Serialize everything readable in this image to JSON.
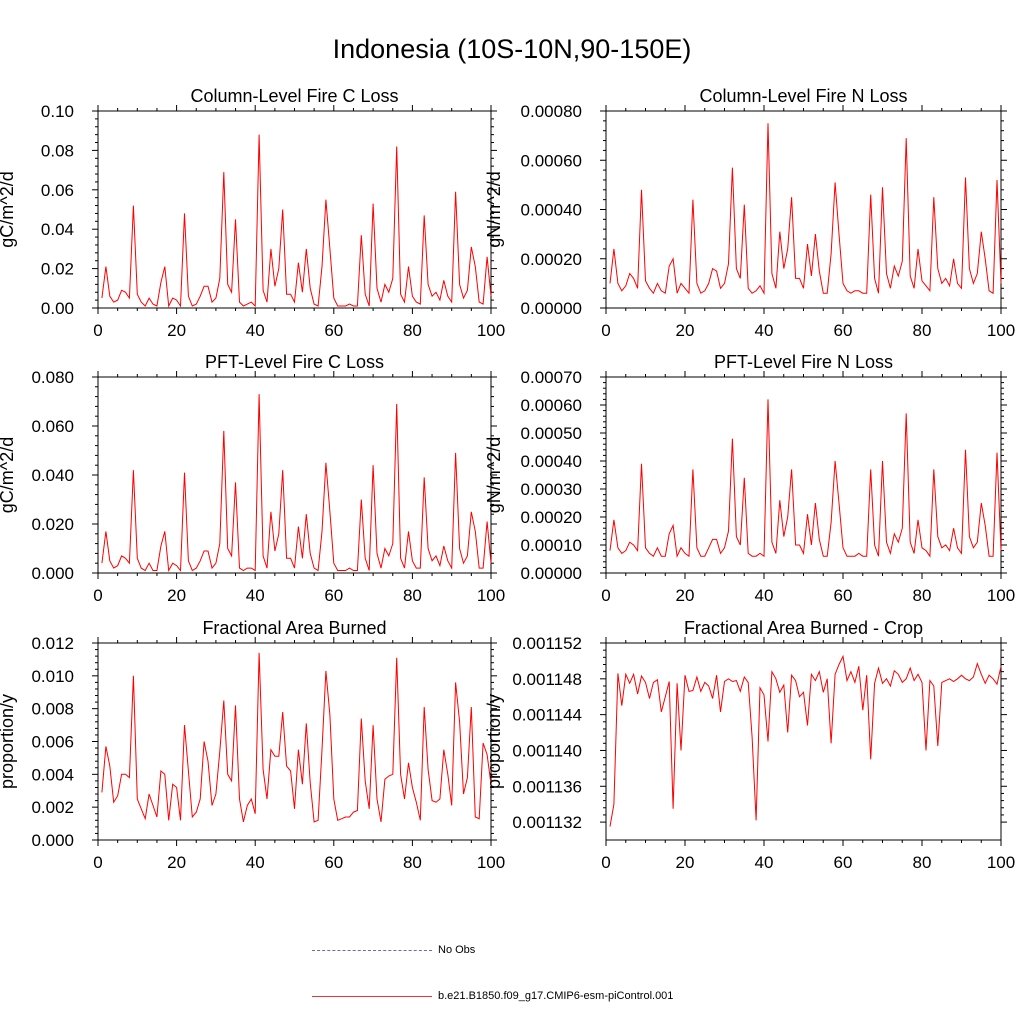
{
  "figure": {
    "title": "Indonesia (10S-10N,90-150E)"
  },
  "legend": [
    {
      "label": "No Obs",
      "style": "dashed",
      "color": "#6b6bb3"
    },
    {
      "label": "b.e21.B1850.f09_g17.CMIP6-esm-piControl.001",
      "style": "solid",
      "color": "#e23a3a"
    }
  ],
  "series_color": "#ff0000",
  "chart_data": [
    {
      "type": "line",
      "title": "Column-Level Fire C Loss",
      "ylabel": "gC/m^2/d",
      "xlim": [
        0,
        100
      ],
      "ylim": [
        0,
        0.1
      ],
      "xticks": [
        "0",
        "20",
        "40",
        "60",
        "80",
        "100"
      ],
      "xtick_values": [
        0,
        20,
        40,
        60,
        80,
        100
      ],
      "yticks": [
        "0.00",
        "0.02",
        "0.04",
        "0.06",
        "0.08",
        "0.10"
      ],
      "ytick_values": [
        0,
        0.02,
        0.04,
        0.06,
        0.08,
        0.1
      ],
      "x_start": 1,
      "values": [
        0.005,
        0.021,
        0.006,
        0.003,
        0.004,
        0.009,
        0.008,
        0.005,
        0.052,
        0.007,
        0.003,
        0.001,
        0.005,
        0.002,
        0.001,
        0.013,
        0.021,
        0.001,
        0.005,
        0.004,
        0.001,
        0.048,
        0.006,
        0.001,
        0.002,
        0.006,
        0.011,
        0.011,
        0.003,
        0.005,
        0.015,
        0.069,
        0.012,
        0.008,
        0.045,
        0.003,
        0.001,
        0.002,
        0.003,
        0.001,
        0.088,
        0.009,
        0.003,
        0.03,
        0.011,
        0.02,
        0.05,
        0.007,
        0.007,
        0.003,
        0.023,
        0.008,
        0.03,
        0.01,
        0.002,
        0.001,
        0.021,
        0.055,
        0.03,
        0.005,
        0.001,
        0.001,
        0.001,
        0.002,
        0.001,
        0.001,
        0.037,
        0.007,
        0.001,
        0.053,
        0.01,
        0.003,
        0.012,
        0.008,
        0.015,
        0.082,
        0.007,
        0.003,
        0.021,
        0.006,
        0.003,
        0.002,
        0.047,
        0.012,
        0.006,
        0.008,
        0.004,
        0.014,
        0.006,
        0.003,
        0.059,
        0.012,
        0.005,
        0.009,
        0.031,
        0.021,
        0.003,
        0.002,
        0.026,
        0.006
      ]
    },
    {
      "type": "line",
      "title": "Column-Level Fire N Loss",
      "ylabel": "gN/m^2/d",
      "xlim": [
        0,
        100
      ],
      "ylim": [
        0,
        0.0008
      ],
      "xticks": [
        "0",
        "20",
        "40",
        "60",
        "80",
        "100"
      ],
      "xtick_values": [
        0,
        20,
        40,
        60,
        80,
        100
      ],
      "yticks": [
        "0.00000",
        "0.00020",
        "0.00040",
        "0.00060",
        "0.00080"
      ],
      "ytick_values": [
        0,
        0.0002,
        0.0004,
        0.0006,
        0.0008
      ],
      "x_start": 1,
      "values": [
        0.0001,
        0.00024,
        0.0001,
        7e-05,
        9e-05,
        0.00014,
        0.00012,
        8e-05,
        0.00048,
        0.00011,
        8e-05,
        6e-05,
        0.0001,
        7e-05,
        6e-05,
        0.00017,
        0.0002,
        6e-05,
        0.0001,
        8e-05,
        6e-05,
        0.00044,
        0.0001,
        6e-05,
        7e-05,
        0.0001,
        0.00016,
        0.00015,
        8e-05,
        0.0001,
        0.00018,
        0.00057,
        0.00016,
        0.00012,
        0.00042,
        8e-05,
        6e-05,
        7e-05,
        9e-05,
        6e-05,
        0.00075,
        0.00014,
        8e-05,
        0.00031,
        0.00016,
        0.00024,
        0.00045,
        0.00012,
        0.00012,
        8e-05,
        0.00026,
        0.00013,
        0.0003,
        0.00015,
        6e-05,
        6e-05,
        0.00022,
        0.00051,
        0.0003,
        0.0001,
        7e-05,
        6e-05,
        7e-05,
        7e-05,
        6e-05,
        6e-05,
        0.00046,
        0.00012,
        6e-05,
        0.00049,
        0.00014,
        8e-05,
        0.00017,
        0.00013,
        0.00019,
        0.00069,
        0.00013,
        8e-05,
        0.00024,
        0.00011,
        9e-05,
        7e-05,
        0.00045,
        0.00016,
        0.0001,
        0.00012,
        9e-05,
        0.0002,
        0.0001,
        8e-05,
        0.00053,
        0.00016,
        0.0001,
        0.00014,
        0.00031,
        0.0002,
        7e-05,
        6e-05,
        0.00052,
        0.0001
      ]
    },
    {
      "type": "line",
      "title": "PFT-Level Fire C Loss",
      "ylabel": "gC/m^2/d",
      "xlim": [
        0,
        100
      ],
      "ylim": [
        0,
        0.08
      ],
      "xticks": [
        "0",
        "20",
        "40",
        "60",
        "80",
        "100"
      ],
      "xtick_values": [
        0,
        20,
        40,
        60,
        80,
        100
      ],
      "yticks": [
        "0.000",
        "0.020",
        "0.040",
        "0.060",
        "0.080"
      ],
      "ytick_values": [
        0,
        0.02,
        0.04,
        0.06,
        0.08
      ],
      "x_start": 1,
      "values": [
        0.004,
        0.017,
        0.005,
        0.002,
        0.003,
        0.007,
        0.006,
        0.004,
        0.042,
        0.006,
        0.002,
        0.001,
        0.004,
        0.001,
        0.001,
        0.011,
        0.017,
        0.001,
        0.004,
        0.003,
        0.001,
        0.041,
        0.005,
        0.001,
        0.002,
        0.005,
        0.009,
        0.009,
        0.002,
        0.004,
        0.012,
        0.058,
        0.01,
        0.007,
        0.037,
        0.002,
        0.001,
        0.002,
        0.002,
        0.001,
        0.073,
        0.007,
        0.002,
        0.025,
        0.009,
        0.016,
        0.042,
        0.006,
        0.006,
        0.002,
        0.019,
        0.006,
        0.024,
        0.008,
        0.002,
        0.001,
        0.017,
        0.045,
        0.025,
        0.004,
        0.001,
        0.001,
        0.001,
        0.002,
        0.001,
        0.001,
        0.03,
        0.006,
        0.001,
        0.044,
        0.008,
        0.002,
        0.01,
        0.007,
        0.012,
        0.069,
        0.006,
        0.002,
        0.017,
        0.005,
        0.002,
        0.002,
        0.039,
        0.01,
        0.005,
        0.007,
        0.003,
        0.011,
        0.005,
        0.002,
        0.049,
        0.01,
        0.004,
        0.007,
        0.025,
        0.017,
        0.002,
        0.002,
        0.021,
        0.004
      ]
    },
    {
      "type": "line",
      "title": "PFT-Level Fire N Loss",
      "ylabel": "gN/m^2/d",
      "xlim": [
        0,
        100
      ],
      "ylim": [
        0,
        0.0007
      ],
      "xticks": [
        "0",
        "20",
        "40",
        "60",
        "80",
        "100"
      ],
      "xtick_values": [
        0,
        20,
        40,
        60,
        80,
        100
      ],
      "yticks": [
        "0.00000",
        "0.00010",
        "0.00020",
        "0.00030",
        "0.00040",
        "0.00050",
        "0.00060",
        "0.00070"
      ],
      "ytick_values": [
        0,
        0.0001,
        0.0002,
        0.0003,
        0.0004,
        0.0005,
        0.0006,
        0.0007
      ],
      "x_start": 1,
      "values": [
        8e-05,
        0.00019,
        9e-05,
        7e-05,
        8e-05,
        0.00011,
        0.0001,
        8e-05,
        0.00039,
        9e-05,
        7e-05,
        6e-05,
        9e-05,
        6e-05,
        6e-05,
        0.00014,
        0.00017,
        6e-05,
        9e-05,
        7e-05,
        6e-05,
        0.00037,
        9e-05,
        6e-05,
        6e-05,
        9e-05,
        0.00012,
        0.00012,
        7e-05,
        9e-05,
        0.00015,
        0.00048,
        0.00013,
        0.0001,
        0.00034,
        7e-05,
        6e-05,
        6e-05,
        7e-05,
        6e-05,
        0.00062,
        0.00011,
        7e-05,
        0.00026,
        0.00013,
        0.0002,
        0.00037,
        0.0001,
        0.0001,
        7e-05,
        0.00021,
        0.0001,
        0.00025,
        0.00012,
        6e-05,
        6e-05,
        0.00018,
        0.0004,
        0.00025,
        9e-05,
        6e-05,
        6e-05,
        6e-05,
        7e-05,
        6e-05,
        6e-05,
        0.00037,
        0.0001,
        6e-05,
        0.0004,
        0.00011,
        7e-05,
        0.00014,
        0.00011,
        0.00016,
        0.00057,
        0.00011,
        7e-05,
        0.00019,
        9e-05,
        8e-05,
        6e-05,
        0.00037,
        0.00013,
        9e-05,
        0.0001,
        8e-05,
        0.00016,
        9e-05,
        7e-05,
        0.00044,
        0.00013,
        9e-05,
        0.00011,
        0.00025,
        0.00017,
        6e-05,
        6e-05,
        0.00043,
        8e-05
      ]
    },
    {
      "type": "line",
      "title": "Fractional Area Burned",
      "ylabel": "proportion/y",
      "xlim": [
        0,
        100
      ],
      "ylim": [
        0,
        0.012
      ],
      "xticks": [
        "0",
        "20",
        "40",
        "60",
        "80",
        "100"
      ],
      "xtick_values": [
        0,
        20,
        40,
        60,
        80,
        100
      ],
      "yticks": [
        "0.000",
        "0.002",
        "0.004",
        "0.006",
        "0.008",
        "0.010",
        "0.012"
      ],
      "ytick_values": [
        0,
        0.002,
        0.004,
        0.006,
        0.008,
        0.01,
        0.012
      ],
      "x_start": 1,
      "values": [
        0.0029,
        0.0057,
        0.0045,
        0.0023,
        0.0027,
        0.004,
        0.004,
        0.0038,
        0.01,
        0.0025,
        0.0019,
        0.0013,
        0.0028,
        0.0021,
        0.0014,
        0.0042,
        0.004,
        0.0012,
        0.0034,
        0.0032,
        0.0012,
        0.007,
        0.0042,
        0.0014,
        0.0017,
        0.0025,
        0.006,
        0.0048,
        0.0021,
        0.0028,
        0.0054,
        0.0085,
        0.004,
        0.0036,
        0.0082,
        0.0025,
        0.0011,
        0.0021,
        0.0025,
        0.0016,
        0.0114,
        0.0043,
        0.0025,
        0.0055,
        0.0051,
        0.0051,
        0.0078,
        0.0045,
        0.0042,
        0.0019,
        0.0055,
        0.0034,
        0.0071,
        0.0035,
        0.0011,
        0.0012,
        0.0055,
        0.0103,
        0.0076,
        0.0025,
        0.0012,
        0.0013,
        0.0014,
        0.0014,
        0.0017,
        0.0018,
        0.0074,
        0.0036,
        0.0019,
        0.007,
        0.0025,
        0.0011,
        0.0037,
        0.0039,
        0.004,
        0.0111,
        0.004,
        0.0025,
        0.0047,
        0.0032,
        0.0023,
        0.0012,
        0.0081,
        0.0043,
        0.0024,
        0.0023,
        0.0025,
        0.0055,
        0.004,
        0.0021,
        0.0096,
        0.0072,
        0.0028,
        0.0038,
        0.0081,
        0.0014,
        0.0013,
        0.0059,
        0.0052,
        0.0034
      ]
    },
    {
      "type": "line",
      "title": "Fractional Area Burned - Crop",
      "ylabel": "proportion/y",
      "xlim": [
        0,
        100
      ],
      "ylim": [
        0.00113,
        0.001152
      ],
      "xticks": [
        "0",
        "20",
        "40",
        "60",
        "80",
        "100"
      ],
      "xtick_values": [
        0,
        20,
        40,
        60,
        80,
        100
      ],
      "yticks": [
        "0.001132",
        "0.001136",
        "0.001140",
        "0.001144",
        "0.001148",
        "0.001152"
      ],
      "ytick_values": [
        0.001132,
        0.001136,
        0.00114,
        0.001144,
        0.001148,
        0.001152
      ],
      "x_start": 1,
      "values": [
        0.0011315,
        0.001134,
        0.0011486,
        0.001145,
        0.0011485,
        0.0011475,
        0.0011485,
        0.0011463,
        0.0011483,
        0.0011476,
        0.0011458,
        0.0011476,
        0.0011479,
        0.0011443,
        0.001146,
        0.0011477,
        0.0011335,
        0.0011475,
        0.00114,
        0.0011484,
        0.0011466,
        0.0011467,
        0.0011482,
        0.0011466,
        0.0011476,
        0.0011472,
        0.0011458,
        0.0011484,
        0.0011443,
        0.0011477,
        0.001148,
        0.0011477,
        0.0011478,
        0.0011466,
        0.0011482,
        0.0011476,
        0.0011415,
        0.0011322,
        0.001147,
        0.0011462,
        0.001141,
        0.0011488,
        0.001148,
        0.0011465,
        0.0011473,
        0.001142,
        0.0011484,
        0.0011478,
        0.001146,
        0.0011465,
        0.0011428,
        0.0011485,
        0.0011478,
        0.0011488,
        0.0011465,
        0.001148,
        0.0011408,
        0.0011485,
        0.0011496,
        0.0011505,
        0.0011478,
        0.0011488,
        0.0011476,
        0.0011494,
        0.0011445,
        0.0011484,
        0.001139,
        0.0011475,
        0.0011492,
        0.0011475,
        0.001148,
        0.0011472,
        0.0011489,
        0.0011485,
        0.0011476,
        0.001148,
        0.0011492,
        0.0011478,
        0.0011485,
        0.0011476,
        0.00114,
        0.0011478,
        0.0011472,
        0.0011405,
        0.0011476,
        0.0011478,
        0.001148,
        0.0011477,
        0.001148,
        0.0011484,
        0.001148,
        0.0011478,
        0.0011482,
        0.0011497,
        0.0011485,
        0.0011475,
        0.0011484,
        0.001148,
        0.0011474,
        0.0011494
      ]
    }
  ]
}
